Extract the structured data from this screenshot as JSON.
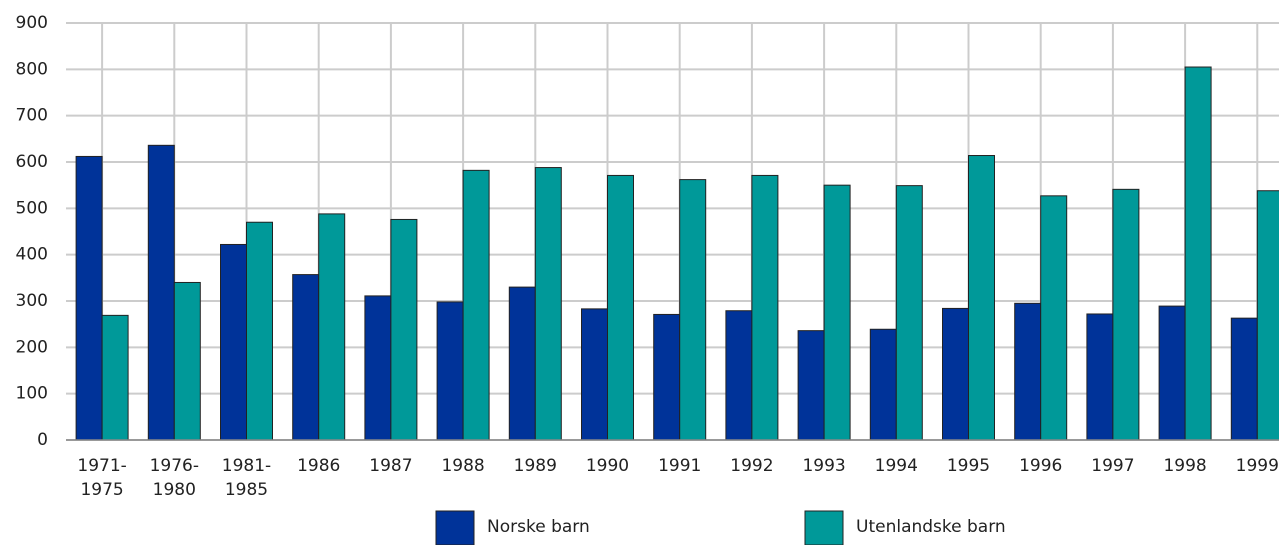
{
  "chart_data": {
    "type": "bar",
    "categories": [
      "1971-1975",
      "1976-1980",
      "1981-1985",
      "1986",
      "1987",
      "1988",
      "1989",
      "1990",
      "1991",
      "1992",
      "1993",
      "1994",
      "1995",
      "1996",
      "1997",
      "1998",
      "1999"
    ],
    "series": [
      {
        "name": "Norske barn",
        "color": "#003399",
        "values": [
          612,
          636,
          422,
          357,
          311,
          298,
          330,
          283,
          271,
          279,
          236,
          239,
          284,
          295,
          272,
          289,
          263
        ]
      },
      {
        "name": "Utenlandske barn",
        "color": "#009999",
        "values": [
          269,
          340,
          470,
          488,
          476,
          582,
          588,
          571,
          562,
          571,
          550,
          549,
          614,
          527,
          541,
          805,
          538
        ]
      }
    ],
    "ylim": [
      0,
      900
    ],
    "yticks": [
      0,
      100,
      200,
      300,
      400,
      500,
      600,
      700,
      800,
      900
    ],
    "grid": true,
    "legend": "bottom"
  }
}
